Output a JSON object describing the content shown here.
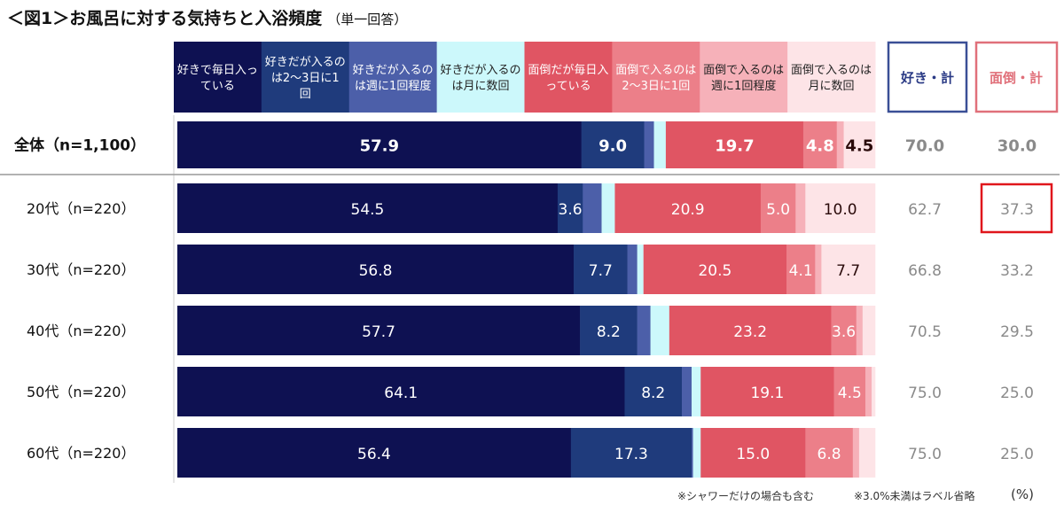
{
  "title": "＜図1＞お風呂に対する気持ちと入浴頻度",
  "subtitle": "（単一回答）",
  "notes": [
    "※シャワーだけの場合も含む",
    "※3.0%未満はラベル省略",
    "(%)"
  ],
  "chart_data": {
    "type": "bar",
    "orientation": "horizontal",
    "stacked": true,
    "label_threshold": 3.0,
    "categories": [
      "全体（n=1,100）",
      "20代（n=220）",
      "30代（n=220）",
      "40代（n=220）",
      "50代（n=220）",
      "60代（n=220）"
    ],
    "series": [
      {
        "name": "好きで毎日入っている",
        "color": "#0e1152",
        "values": [
          57.9,
          54.5,
          56.8,
          57.7,
          64.1,
          56.4
        ]
      },
      {
        "name": "好きだが入るのは2～3日に1回",
        "color": "#1f3b7c",
        "values": [
          9.0,
          3.6,
          7.7,
          8.2,
          8.2,
          17.3
        ]
      },
      {
        "name": "好きだが入るのは週に1回程度",
        "color": "#4c5fa9",
        "values": [
          1.4,
          2.7,
          1.4,
          1.9,
          1.4,
          0.2
        ]
      },
      {
        "name": "好きだが入るのは月に数回",
        "color": "#ccf8fb",
        "values": [
          1.7,
          1.9,
          0.9,
          2.7,
          1.3,
          1.1
        ]
      },
      {
        "name": "面倒だが毎日入っている",
        "color": "#e05563",
        "values": [
          19.7,
          20.9,
          20.5,
          23.2,
          19.1,
          15.0
        ]
      },
      {
        "name": "面倒で入るのは2～3日に1回",
        "color": "#ec7f89",
        "values": [
          4.8,
          5.0,
          4.1,
          3.6,
          4.5,
          6.8
        ]
      },
      {
        "name": "面倒で入るのは週に1回程度",
        "color": "#f6b1b9",
        "values": [
          1.0,
          1.4,
          0.9,
          0.9,
          0.9,
          0.9
        ]
      },
      {
        "name": "面倒で入るのは月に数回",
        "color": "#fde4e7",
        "values": [
          4.5,
          10.0,
          7.7,
          1.8,
          0.5,
          2.3
        ]
      }
    ],
    "totals": {
      "like": {
        "label": "好き・計",
        "color": "#3a4f96",
        "values": [
          "70.0",
          "62.7",
          "66.8",
          "70.5",
          "75.0",
          "75.0"
        ]
      },
      "bother": {
        "label": "面倒・計",
        "color": "#e0707a",
        "values": [
          "30.0",
          "37.3",
          "33.2",
          "29.5",
          "25.0",
          "25.0"
        ]
      }
    },
    "highlight": {
      "row": 1,
      "column": "bother",
      "color": "#e0161c"
    },
    "xlim": [
      0,
      100
    ],
    "unit": "%"
  }
}
